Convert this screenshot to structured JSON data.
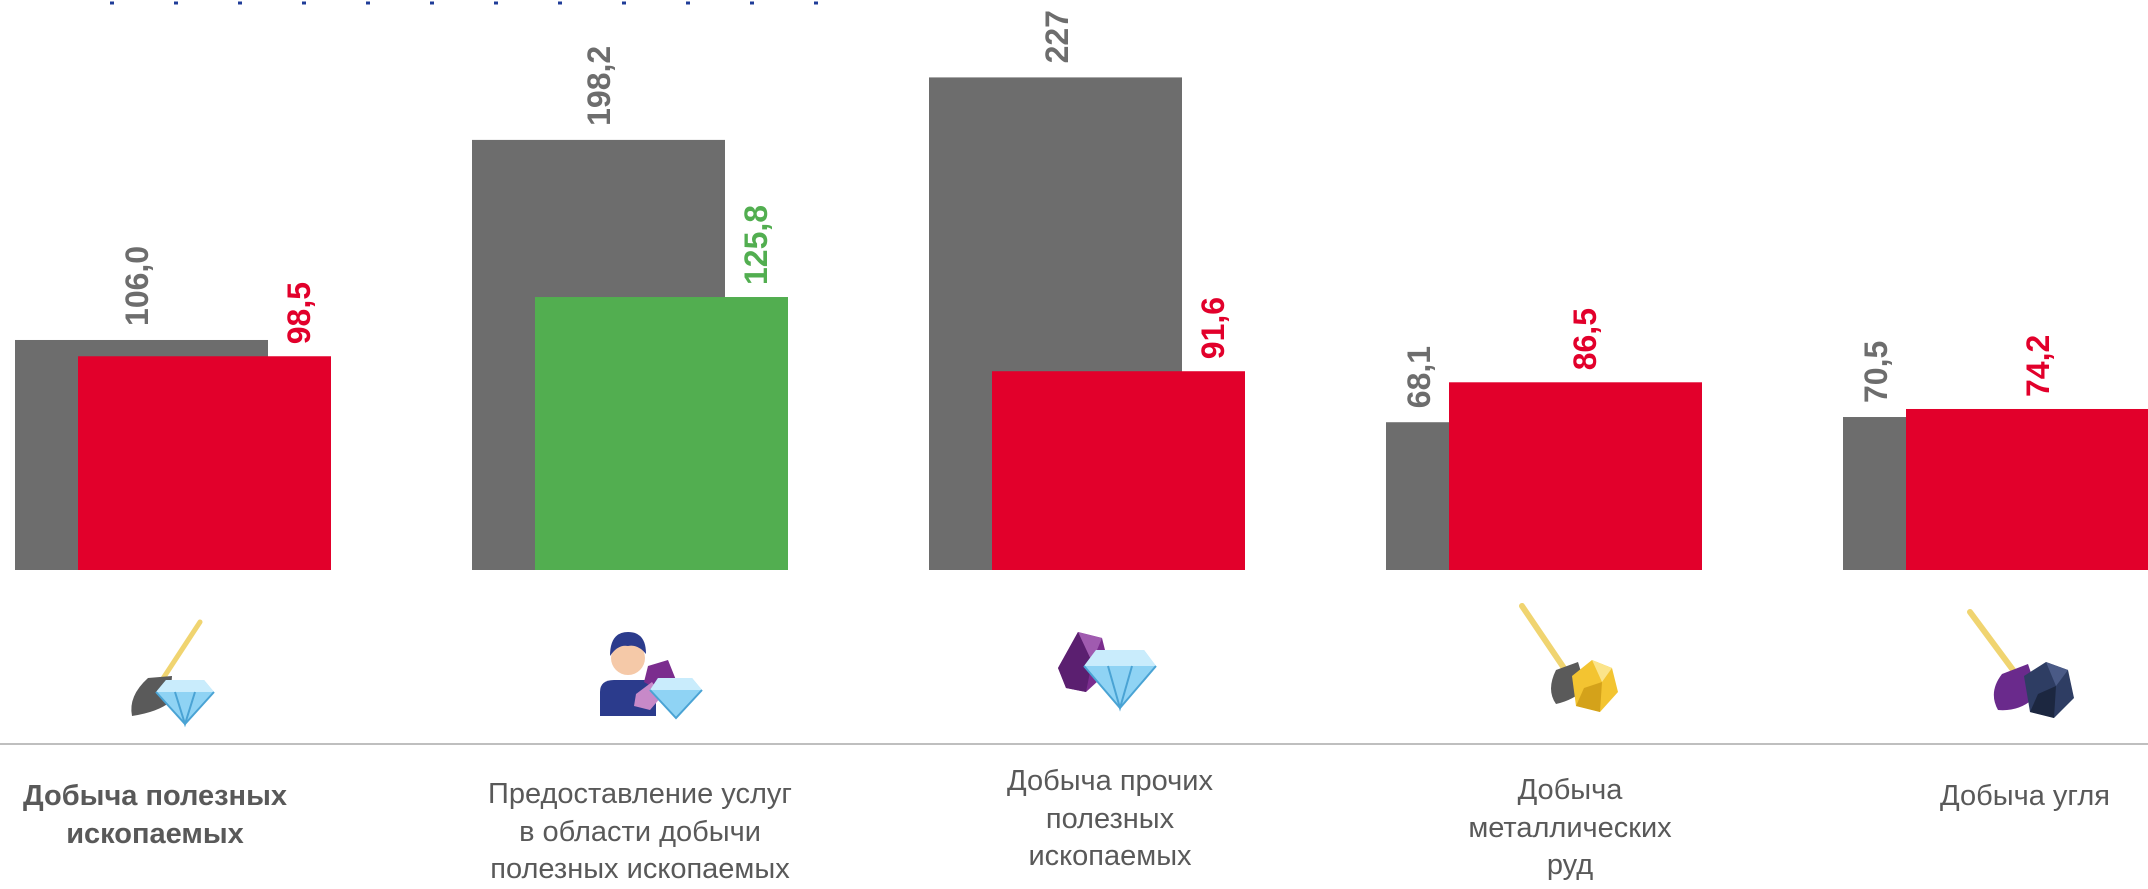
{
  "colors": {
    "prev": "#6d6d6d",
    "decline": "#e2002b",
    "growth": "#52ae50",
    "prev_label": "#6d6d6d",
    "axis": "#bfbfbf",
    "header": "#1f3c98"
  },
  "chart_data": {
    "type": "bar",
    "categories": [
      "Добыча полезных ископаемых",
      "Предоставление услуг в области добычи полезных ископаемых",
      "Добыча прочих полезных ископаемых",
      "Добыча металлических руд",
      "Добыча угля"
    ],
    "series": [
      {
        "values": [
          106.0,
          198.2,
          227,
          68.1,
          70.5
        ],
        "labels": [
          "106,0",
          "198,2",
          "227",
          "68,1",
          "70,5"
        ]
      },
      {
        "values": [
          98.5,
          125.8,
          91.6,
          86.5,
          74.2
        ],
        "labels": [
          "98,5",
          "125,8",
          "91,6",
          "86,5",
          "74,2"
        ],
        "status": [
          "decline",
          "growth",
          "decline",
          "decline",
          "decline"
        ]
      }
    ],
    "ylim": [
      0,
      250
    ],
    "grid": false,
    "legend": "none"
  },
  "labels": [
    "Добыча полезных\nископаемых",
    "Предоставление услуг\nв области добычи\nполезных ископаемых",
    "Добыча прочих\nполезных\nископаемых",
    "Добыча\nметаллических\nруд",
    "Добыча угля"
  ],
  "icons": [
    "shovel-diamond-icon",
    "worker-gems-icon",
    "gems-icon",
    "shovel-gold-ore-icon",
    "shovel-coal-icon"
  ]
}
